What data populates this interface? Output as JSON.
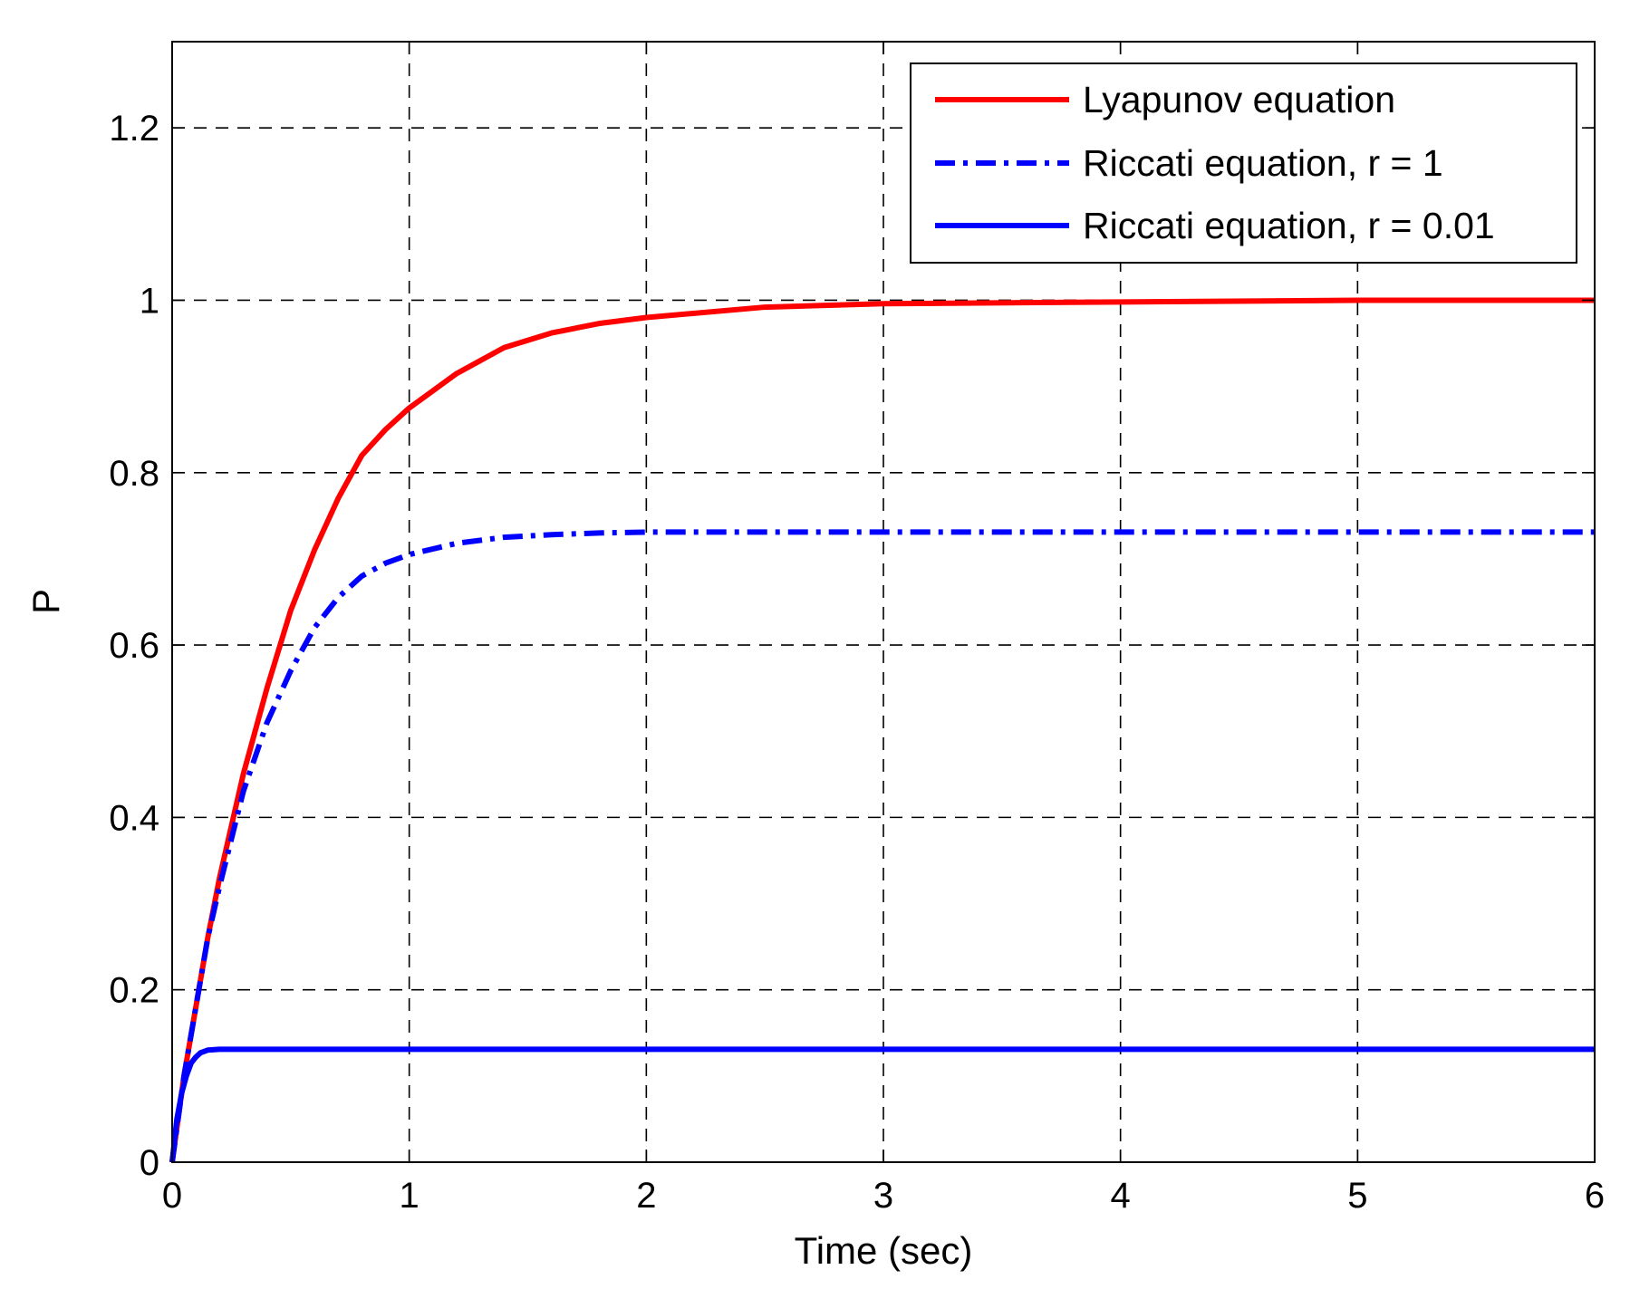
{
  "chart_data": {
    "type": "line",
    "xlabel": "Time (sec)",
    "ylabel": "P",
    "xlim": [
      0,
      6
    ],
    "ylim": [
      0,
      1.3
    ],
    "xticks": [
      "0",
      "1",
      "2",
      "3",
      "4",
      "5",
      "6"
    ],
    "yticks": [
      "0",
      "0.2",
      "0.4",
      "0.6",
      "0.8",
      "1",
      "1.2"
    ],
    "grid": true,
    "legend_position": "top-right",
    "series": [
      {
        "name": "Lyapunov equation",
        "color": "#ff0000",
        "style": "solid",
        "x": [
          0,
          0.05,
          0.1,
          0.15,
          0.2,
          0.3,
          0.4,
          0.5,
          0.6,
          0.7,
          0.8,
          0.9,
          1.0,
          1.2,
          1.4,
          1.6,
          1.8,
          2.0,
          2.5,
          3.0,
          4.0,
          5.0,
          6.0
        ],
        "y": [
          0,
          0.1,
          0.18,
          0.26,
          0.33,
          0.45,
          0.55,
          0.64,
          0.71,
          0.77,
          0.82,
          0.85,
          0.875,
          0.915,
          0.945,
          0.962,
          0.973,
          0.98,
          0.992,
          0.996,
          0.998,
          1.0,
          1.0
        ]
      },
      {
        "name": "Riccati equation, r = 1",
        "color": "#0000ff",
        "style": "dashdot",
        "x": [
          0,
          0.05,
          0.1,
          0.15,
          0.2,
          0.3,
          0.4,
          0.5,
          0.6,
          0.7,
          0.8,
          0.9,
          1.0,
          1.2,
          1.4,
          1.6,
          1.8,
          2.0,
          3.0,
          4.0,
          5.0,
          6.0
        ],
        "y": [
          0,
          0.1,
          0.18,
          0.26,
          0.32,
          0.43,
          0.51,
          0.57,
          0.62,
          0.655,
          0.68,
          0.695,
          0.705,
          0.718,
          0.725,
          0.728,
          0.73,
          0.731,
          0.731,
          0.731,
          0.731,
          0.731
        ]
      },
      {
        "name": "Riccati equation, r = 0.01",
        "color": "#0000ff",
        "style": "solid",
        "x": [
          0,
          0.02,
          0.04,
          0.06,
          0.08,
          0.1,
          0.12,
          0.15,
          0.2,
          1.0,
          2.0,
          3.0,
          4.0,
          5.0,
          6.0
        ],
        "y": [
          0,
          0.05,
          0.08,
          0.1,
          0.115,
          0.122,
          0.127,
          0.13,
          0.131,
          0.131,
          0.131,
          0.131,
          0.131,
          0.131,
          0.131
        ]
      }
    ]
  }
}
